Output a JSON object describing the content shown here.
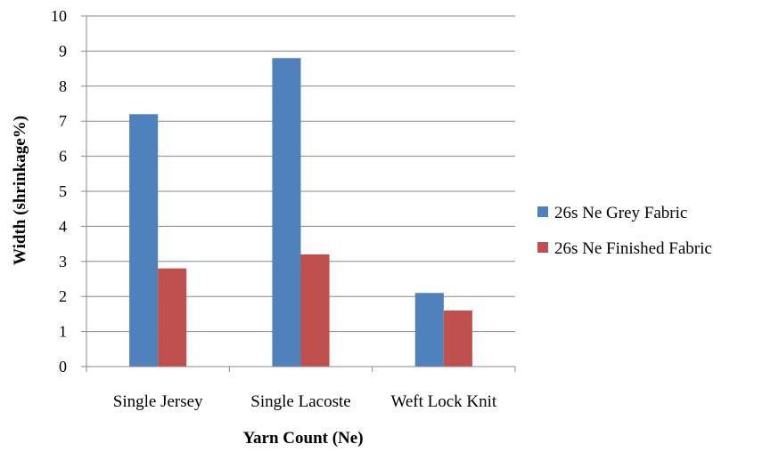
{
  "chart_data": {
    "type": "bar",
    "title": "",
    "xlabel": "Yarn Count (Ne)",
    "ylabel": "Width (shrinkage%)",
    "ylim": [
      0,
      10
    ],
    "yticks": [
      0,
      1,
      2,
      3,
      4,
      5,
      6,
      7,
      8,
      9,
      10
    ],
    "grid": true,
    "legend_position": "right",
    "categories": [
      "Single Jersey",
      "Single Lacoste",
      "Weft Lock Knit"
    ],
    "series": [
      {
        "name": "26s Ne Grey Fabric",
        "color": "#4f81bd",
        "values": [
          7.2,
          8.8,
          2.1
        ]
      },
      {
        "name": "26s Ne Finished Fabric",
        "color": "#c0504d",
        "values": [
          2.8,
          3.2,
          1.6
        ]
      }
    ]
  }
}
